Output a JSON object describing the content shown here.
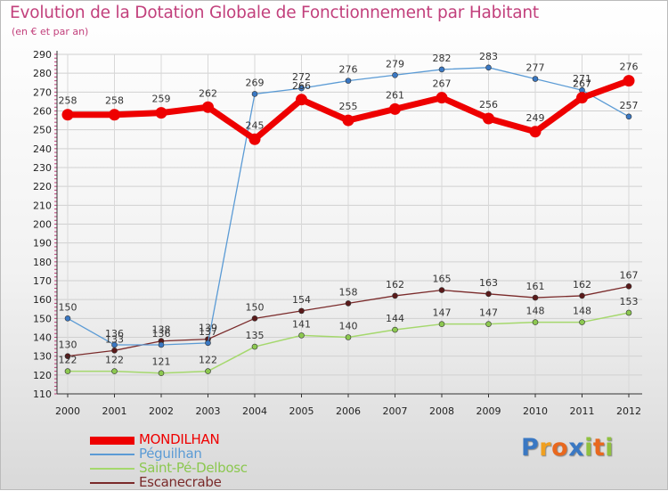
{
  "chart_data": {
    "type": "line",
    "title": "Evolution de la Dotation Globale de Fonctionnement par Habitant",
    "subtitle": "(en € et par an)",
    "xlabel": "",
    "ylabel": "",
    "ylim": [
      110,
      290
    ],
    "yticks": [
      110,
      120,
      130,
      140,
      150,
      160,
      170,
      180,
      190,
      200,
      210,
      220,
      230,
      240,
      250,
      260,
      270,
      280,
      290
    ],
    "categories": [
      "2000",
      "2001",
      "2002",
      "2003",
      "2004",
      "2005",
      "2006",
      "2007",
      "2008",
      "2009",
      "2010",
      "2011",
      "2012"
    ],
    "grid": true,
    "legend_position": "bottom-left",
    "series": [
      {
        "name": "MONDILHAN",
        "color": "#ee0000",
        "values": [
          258,
          258,
          259,
          262,
          245,
          266,
          255,
          261,
          267,
          256,
          249,
          267,
          276
        ],
        "labels": [
          "258",
          "258",
          "259",
          "262",
          "245",
          "266",
          "255",
          "261",
          "267",
          "256",
          "249",
          "267",
          "276"
        ]
      },
      {
        "name": "Péguilhan",
        "color": "#5b9bd5",
        "values": [
          150,
          136,
          136,
          137,
          269,
          272,
          276,
          279,
          282,
          283,
          277,
          271,
          257
        ],
        "labels": [
          "150",
          "136",
          "136",
          "137",
          "269",
          "272",
          "276",
          "279",
          "282",
          "283",
          "277",
          "271",
          "257"
        ]
      },
      {
        "name": "Saint-Pé-Delbosc",
        "color": "#a5d86d",
        "values": [
          122,
          122,
          121,
          122,
          135,
          141,
          140,
          144,
          147,
          147,
          148,
          148,
          153
        ],
        "labels": [
          "122",
          "122",
          "121",
          "122",
          "135",
          "141",
          "140",
          "144",
          "147",
          "147",
          "148",
          "148",
          "153"
        ]
      },
      {
        "name": "Escanecrabe",
        "color": "#7a2a2a",
        "values": [
          130,
          133,
          138,
          139,
          150,
          154,
          158,
          162,
          165,
          163,
          161,
          162,
          167
        ],
        "labels": [
          "130",
          "133",
          "138",
          "139",
          "150",
          "154",
          "158",
          "162",
          "165",
          "163",
          "161",
          "162",
          "167"
        ]
      }
    ]
  },
  "legend": {
    "items": [
      {
        "label": "MONDILHAN",
        "color": "#ee0000"
      },
      {
        "label": "Péguilhan",
        "color": "#5b9bd5"
      },
      {
        "label": "Saint-Pé-Delbosc",
        "color": "#a5d86d"
      },
      {
        "label": "Escanecrabe",
        "color": "#7a2a2a"
      }
    ]
  },
  "logo": {
    "text": "Proxiti",
    "letters": [
      {
        "ch": "P",
        "color": "#3a78c3"
      },
      {
        "ch": "r",
        "color": "#f0a020"
      },
      {
        "ch": "o",
        "color": "#e8681e"
      },
      {
        "ch": "x",
        "color": "#3a78c3"
      },
      {
        "ch": "i",
        "color": "#90c040"
      },
      {
        "ch": "t",
        "color": "#e8681e"
      },
      {
        "ch": "i",
        "color": "#90c040"
      }
    ]
  }
}
